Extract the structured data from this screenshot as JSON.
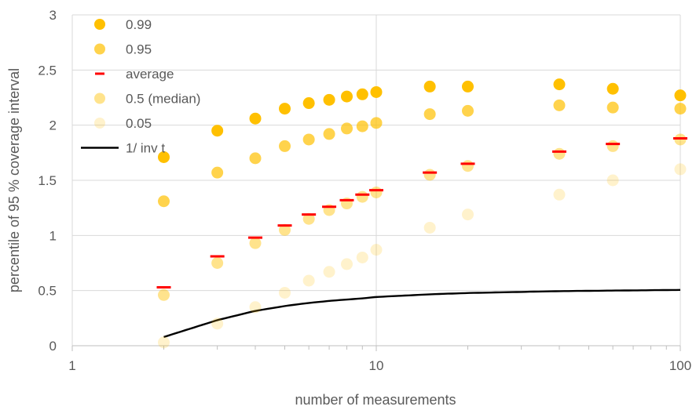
{
  "chart_data": {
    "type": "scatter",
    "title": "",
    "xlabel": "number of measurements",
    "ylabel": "percentile of 95 % coverage interval",
    "xscale": "log",
    "xlim": [
      1,
      100
    ],
    "ylim": [
      0,
      3
    ],
    "x_ticks": [
      1,
      10,
      100
    ],
    "x_tick_labels": [
      "1",
      "10",
      "100"
    ],
    "y_ticks": [
      0,
      0.5,
      1,
      1.5,
      2,
      2.5,
      3
    ],
    "y_tick_labels": [
      "0",
      "0.5",
      "1",
      "1.5",
      "2",
      "2.5",
      "3"
    ],
    "grid": true,
    "legend_position": "top-left",
    "x": [
      2,
      3,
      4,
      5,
      6,
      7,
      8,
      9,
      10,
      15,
      20,
      40,
      60,
      100
    ],
    "series": [
      {
        "name": "0.99",
        "marker": "circle",
        "color": "#FFC000",
        "opacity": 1.0,
        "values": [
          1.71,
          1.95,
          2.06,
          2.15,
          2.2,
          2.23,
          2.26,
          2.28,
          2.3,
          2.35,
          2.35,
          2.37,
          2.33,
          2.27
        ]
      },
      {
        "name": "0.95",
        "marker": "circle",
        "color": "#FFC000",
        "opacity": 0.7,
        "values": [
          1.31,
          1.57,
          1.7,
          1.81,
          1.87,
          1.92,
          1.97,
          1.99,
          2.02,
          2.1,
          2.13,
          2.18,
          2.16,
          2.15
        ]
      },
      {
        "name": "average",
        "marker": "dash",
        "color": "#FF0000",
        "opacity": 1.0,
        "values": [
          0.53,
          0.81,
          0.98,
          1.09,
          1.19,
          1.26,
          1.32,
          1.37,
          1.41,
          1.57,
          1.65,
          1.76,
          1.83,
          1.88
        ]
      },
      {
        "name": "0.5 (median)",
        "marker": "circle",
        "color": "#FFC000",
        "opacity": 0.45,
        "values": [
          0.46,
          0.75,
          0.93,
          1.05,
          1.15,
          1.23,
          1.29,
          1.35,
          1.39,
          1.55,
          1.63,
          1.74,
          1.81,
          1.87
        ]
      },
      {
        "name": "0.05",
        "marker": "circle",
        "color": "#FFC000",
        "opacity": 0.2,
        "values": [
          0.03,
          0.2,
          0.35,
          0.48,
          0.59,
          0.67,
          0.74,
          0.8,
          0.87,
          1.07,
          1.19,
          1.37,
          1.5,
          1.6
        ]
      },
      {
        "name": "1/ inv t",
        "marker": "line",
        "color": "#000000",
        "opacity": 1.0,
        "x": [
          2,
          3,
          4,
          5,
          6,
          7,
          8,
          9,
          10,
          15,
          20,
          40,
          60,
          100
        ],
        "values": [
          0.079,
          0.232,
          0.316,
          0.36,
          0.388,
          0.406,
          0.419,
          0.429,
          0.442,
          0.466,
          0.478,
          0.495,
          0.5,
          0.506
        ]
      }
    ]
  }
}
